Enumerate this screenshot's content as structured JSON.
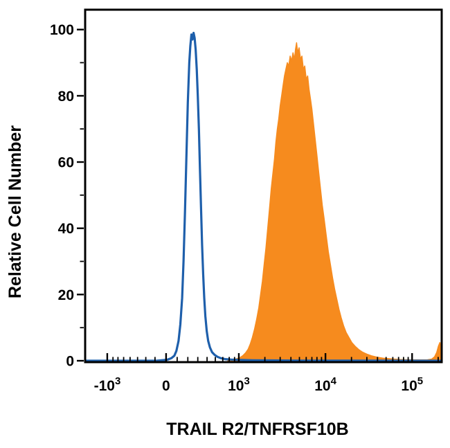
{
  "figure": {
    "background": "#ffffff",
    "axis_color": "#000000"
  },
  "chart_data": {
    "type": "area",
    "subtype": "flow-cytometry-histogram",
    "title": "",
    "xlabel": "TRAIL R2/TNFRSF10B",
    "ylabel": "Relative Cell Number",
    "grid": false,
    "legend": "none",
    "x_axis": {
      "scale": "logicle",
      "major_ticks": [
        {
          "text": "-10",
          "sup": "3",
          "f": 0.062
        },
        {
          "text": "0",
          "sup": "",
          "f": 0.227
        },
        {
          "text": "10",
          "sup": "3",
          "f": 0.431
        },
        {
          "text": "10",
          "sup": "4",
          "f": 0.674
        },
        {
          "text": "10",
          "sup": "5",
          "f": 0.917
        }
      ],
      "minor_ticks": [
        0.078,
        0.092,
        0.108,
        0.126,
        0.147,
        0.17,
        0.196,
        0.258,
        0.288,
        0.316,
        0.342,
        0.365,
        0.386,
        0.404,
        0.419,
        0.504,
        0.547,
        0.577,
        0.601,
        0.62,
        0.636,
        0.65,
        0.663,
        0.747,
        0.79,
        0.82,
        0.844,
        0.863,
        0.879,
        0.893,
        0.906,
        0.99
      ]
    },
    "y_axis": {
      "ticks": [
        0,
        20,
        40,
        60,
        80,
        100
      ],
      "minor_ticks": [
        10,
        30,
        50,
        70,
        90
      ],
      "range": [
        0,
        106
      ]
    },
    "series": [
      {
        "name": "stained-sample-filled",
        "style": "filled",
        "color": "#f68b1e",
        "stroke_width": 1.5,
        "points": [
          [
            0.4,
            0
          ],
          [
            0.415,
            0.3
          ],
          [
            0.425,
            0.6
          ],
          [
            0.435,
            1
          ],
          [
            0.443,
            1.6
          ],
          [
            0.45,
            2.4
          ],
          [
            0.457,
            3.5
          ],
          [
            0.463,
            5
          ],
          [
            0.469,
            7
          ],
          [
            0.475,
            9.5
          ],
          [
            0.481,
            12.5
          ],
          [
            0.487,
            16
          ],
          [
            0.492,
            20
          ],
          [
            0.497,
            24
          ],
          [
            0.502,
            29
          ],
          [
            0.507,
            34
          ],
          [
            0.512,
            40
          ],
          [
            0.517,
            46
          ],
          [
            0.522,
            52
          ],
          [
            0.527,
            57
          ],
          [
            0.531,
            61
          ],
          [
            0.535,
            66
          ],
          [
            0.539,
            70
          ],
          [
            0.543,
            73
          ],
          [
            0.547,
            77
          ],
          [
            0.551,
            80
          ],
          [
            0.555,
            83
          ],
          [
            0.559,
            86
          ],
          [
            0.563,
            88
          ],
          [
            0.567,
            90
          ],
          [
            0.571,
            89
          ],
          [
            0.575,
            92
          ],
          [
            0.579,
            90.5
          ],
          [
            0.583,
            93
          ],
          [
            0.587,
            91
          ],
          [
            0.59,
            94
          ],
          [
            0.593,
            96
          ],
          [
            0.596,
            93
          ],
          [
            0.6,
            94.5
          ],
          [
            0.604,
            91
          ],
          [
            0.608,
            92
          ],
          [
            0.612,
            88
          ],
          [
            0.616,
            89
          ],
          [
            0.62,
            85
          ],
          [
            0.624,
            86
          ],
          [
            0.628,
            82
          ],
          [
            0.632,
            79
          ],
          [
            0.636,
            76
          ],
          [
            0.64,
            72
          ],
          [
            0.645,
            67
          ],
          [
            0.65,
            62
          ],
          [
            0.655,
            57
          ],
          [
            0.66,
            52
          ],
          [
            0.665,
            47
          ],
          [
            0.67,
            43
          ],
          [
            0.676,
            38
          ],
          [
            0.682,
            33
          ],
          [
            0.688,
            29
          ],
          [
            0.694,
            25
          ],
          [
            0.7,
            21.5
          ],
          [
            0.706,
            18.5
          ],
          [
            0.712,
            15.5
          ],
          [
            0.718,
            13
          ],
          [
            0.725,
            10.5
          ],
          [
            0.732,
            8.5
          ],
          [
            0.74,
            7
          ],
          [
            0.748,
            5.5
          ],
          [
            0.757,
            4.4
          ],
          [
            0.767,
            3.4
          ],
          [
            0.778,
            2.6
          ],
          [
            0.79,
            2
          ],
          [
            0.803,
            1.5
          ],
          [
            0.818,
            1.1
          ],
          [
            0.835,
            0.8
          ],
          [
            0.855,
            0.6
          ],
          [
            0.88,
            0.4
          ],
          [
            0.91,
            0.3
          ],
          [
            0.94,
            0.25
          ],
          [
            0.96,
            0.3
          ],
          [
            0.972,
            0.5
          ],
          [
            0.98,
            1.2
          ],
          [
            0.986,
            2.5
          ],
          [
            0.991,
            4.5
          ],
          [
            0.995,
            5.5
          ],
          [
            0.998,
            3.5
          ],
          [
            1,
            1.5
          ]
        ]
      },
      {
        "name": "control-open-outline",
        "style": "open",
        "color": "#1e5fab",
        "stroke_width": 3.2,
        "points": [
          [
            0,
            0
          ],
          [
            0.2,
            0
          ],
          [
            0.23,
            0.3
          ],
          [
            0.242,
            0.8
          ],
          [
            0.25,
            1.5
          ],
          [
            0.256,
            3
          ],
          [
            0.262,
            6
          ],
          [
            0.267,
            11
          ],
          [
            0.272,
            19
          ],
          [
            0.276,
            30
          ],
          [
            0.28,
            45
          ],
          [
            0.284,
            62
          ],
          [
            0.288,
            78
          ],
          [
            0.292,
            90
          ],
          [
            0.295,
            95
          ],
          [
            0.298,
            98.5
          ],
          [
            0.301,
            97
          ],
          [
            0.304,
            99
          ],
          [
            0.307,
            97.5
          ],
          [
            0.31,
            94
          ],
          [
            0.313,
            88
          ],
          [
            0.316,
            80
          ],
          [
            0.319,
            70
          ],
          [
            0.322,
            58
          ],
          [
            0.325,
            46
          ],
          [
            0.328,
            35
          ],
          [
            0.331,
            26
          ],
          [
            0.334,
            19
          ],
          [
            0.337,
            13.5
          ],
          [
            0.341,
            9
          ],
          [
            0.345,
            6
          ],
          [
            0.35,
            4
          ],
          [
            0.356,
            2.6
          ],
          [
            0.363,
            1.8
          ],
          [
            0.371,
            1.2
          ],
          [
            0.38,
            0.8
          ],
          [
            0.392,
            0.5
          ],
          [
            0.41,
            0.35
          ],
          [
            0.435,
            0.25
          ],
          [
            0.47,
            0.15
          ],
          [
            0.52,
            0.1
          ],
          [
            0.6,
            0.05
          ],
          [
            1,
            0
          ]
        ]
      }
    ]
  }
}
